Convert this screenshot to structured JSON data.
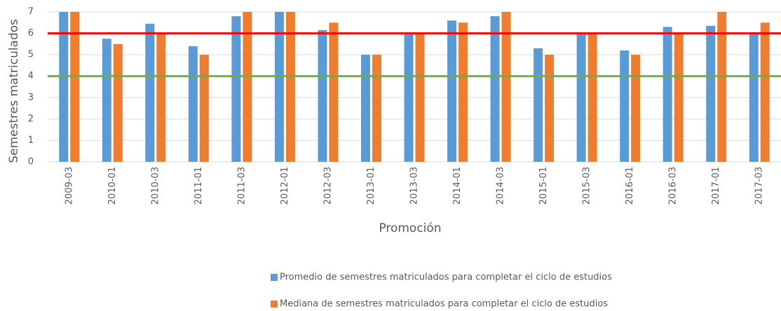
{
  "chart_data": {
    "type": "bar",
    "x_label": "Promoción",
    "y_label": "Semestres matriculados",
    "categories": [
      "2009-03",
      "2010-01",
      "2010-03",
      "2011-01",
      "2011-03",
      "2012-01",
      "2012-03",
      "2013-01",
      "2013-03",
      "2014-01",
      "2014-03",
      "2015-01",
      "2015-03",
      "2016-01",
      "2016-03",
      "2017-01",
      "2017-03"
    ],
    "series": [
      {
        "name": "Promedio de semestres matriculados para completar el ciclo de estudios",
        "color": "#5b9bd5",
        "values": [
          7,
          5.75,
          6.45,
          5.4,
          6.8,
          7,
          6.15,
          5,
          6,
          6.6,
          6.8,
          5.3,
          6,
          5.2,
          6.3,
          6.35,
          6.05
        ]
      },
      {
        "name": "Mediana de semestres matriculados para completar el ciclo de estudios",
        "color": "#ed7d31",
        "values": [
          7,
          5.5,
          6,
          5,
          7,
          7,
          6.5,
          5,
          6,
          6.5,
          7,
          5,
          6,
          5,
          6,
          7,
          6.5
        ]
      }
    ],
    "reference_lines": [
      {
        "value": 6,
        "color": "#ff0000"
      },
      {
        "value": 4,
        "color": "#70ad47"
      }
    ],
    "ylim": [
      0,
      7
    ],
    "yticks": [
      0,
      1,
      2,
      3,
      4,
      5,
      6,
      7
    ],
    "grid": true
  }
}
